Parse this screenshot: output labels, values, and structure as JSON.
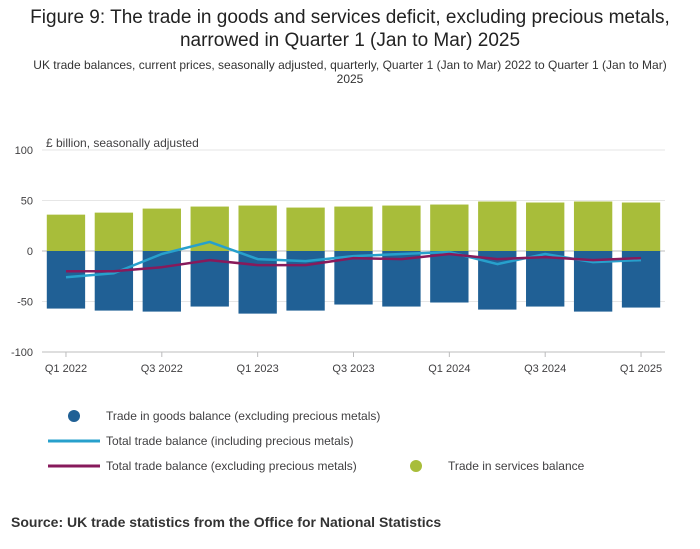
{
  "title": "Figure 9: The trade in goods and services deficit, excluding precious metals, narrowed in Quarter 1 (Jan to Mar) 2025",
  "subtitle": "UK trade balances, current prices, seasonally adjusted, quarterly, Quarter 1 (Jan to Mar) 2022 to Quarter 1 (Jan to Mar) 2025",
  "source": "Source: UK trade statistics from the Office for National Statistics",
  "chart_data": {
    "type": "bar",
    "ylabel": "£ billion, seasonally adjusted",
    "ylim": [
      -100,
      100
    ],
    "yticks": [
      100,
      50,
      0,
      -50,
      -100
    ],
    "grid": true,
    "legend_position": "bottom",
    "categories": [
      "Q1 2022",
      "Q2 2022",
      "Q3 2022",
      "Q4 2022",
      "Q1 2023",
      "Q2 2023",
      "Q3 2023",
      "Q4 2023",
      "Q1 2024",
      "Q2 2024",
      "Q3 2024",
      "Q4 2024",
      "Q1 2025"
    ],
    "xtick_labels": [
      "Q1 2022",
      "",
      "Q3 2022",
      "",
      "Q1 2023",
      "",
      "Q3 2023",
      "",
      "Q1 2024",
      "",
      "Q3 2024",
      "",
      "Q1 2025"
    ],
    "series": [
      {
        "name": "Trade in goods balance (excluding precious metals)",
        "type": "bar",
        "color": "#206095",
        "values": [
          -57,
          -59,
          -60,
          -55,
          -62,
          -59,
          -53,
          -55,
          -51,
          -58,
          -55,
          -60,
          -56
        ]
      },
      {
        "name": "Trade in services balance",
        "type": "bar",
        "color": "#a8bd3a",
        "values": [
          36,
          38,
          42,
          44,
          45,
          43,
          44,
          45,
          46,
          49,
          48,
          49,
          48
        ]
      },
      {
        "name": "Total trade balance (including precious metals)",
        "type": "line",
        "color": "#27a0cc",
        "values": [
          -26,
          -22,
          -3,
          9,
          -8,
          -10,
          -5,
          -3,
          -1,
          -13,
          -3,
          -11,
          -9
        ]
      },
      {
        "name": "Total trade balance (excluding precious metals)",
        "type": "line",
        "color": "#871a5b",
        "values": [
          -20,
          -20,
          -16,
          -9,
          -14,
          -14,
          -7,
          -8,
          -3,
          -8,
          -6,
          -9,
          -7
        ]
      }
    ],
    "legend_order": [
      "Trade in goods balance (excluding precious metals)",
      "Total trade balance (including precious metals)",
      "Total trade balance (excluding precious metals)",
      "Trade in services balance"
    ]
  }
}
